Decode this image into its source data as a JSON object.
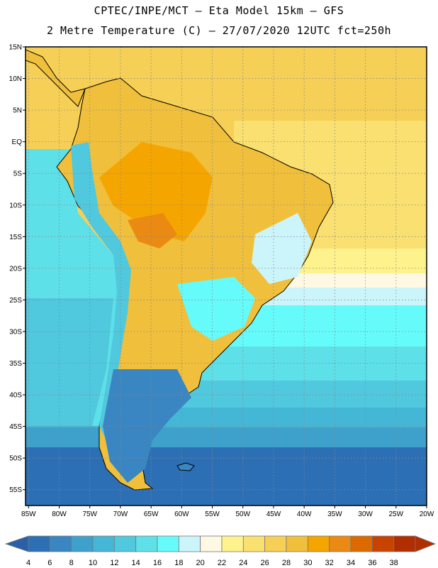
{
  "header": {
    "line1": "CPTEC/INPE/MCT  —   Eta Model 15km — GFS",
    "line2": "2 Metre Temperature (C) — 27/07/2020 12UTC fct=250h"
  },
  "map": {
    "lat_labels": [
      "15N",
      "10N",
      "5N",
      "EQ",
      "5S",
      "10S",
      "15S",
      "20S",
      "25S",
      "30S",
      "35S",
      "40S",
      "45S",
      "50S",
      "55S"
    ],
    "lon_labels": [
      "85W",
      "80W",
      "75W",
      "70W",
      "65W",
      "60W",
      "55W",
      "50W",
      "45W",
      "40W",
      "35W",
      "30W",
      "25W",
      "20W"
    ],
    "lat_range": [
      15,
      -57.5
    ],
    "lon_range": [
      -85.5,
      -20
    ]
  },
  "colorbar": {
    "labels": [
      "4",
      "6",
      "8",
      "10",
      "12",
      "14",
      "16",
      "18",
      "20",
      "22",
      "24",
      "26",
      "28",
      "30",
      "32",
      "34",
      "36",
      "38"
    ],
    "colors": [
      "#2c6fb4",
      "#3a86c2",
      "#3ea1cc",
      "#44b6d6",
      "#50c8de",
      "#5ee0e8",
      "#66fbfb",
      "#ccf5fb",
      "#fff8e2",
      "#fdf28c",
      "#f9e070",
      "#f6cf56",
      "#f0bf3c",
      "#f5a500",
      "#ea8a12",
      "#dc6a00",
      "#c84200",
      "#b02e00"
    ],
    "low_arrow_color": "#2a60a8",
    "high_arrow_color": "#b02e00"
  }
}
